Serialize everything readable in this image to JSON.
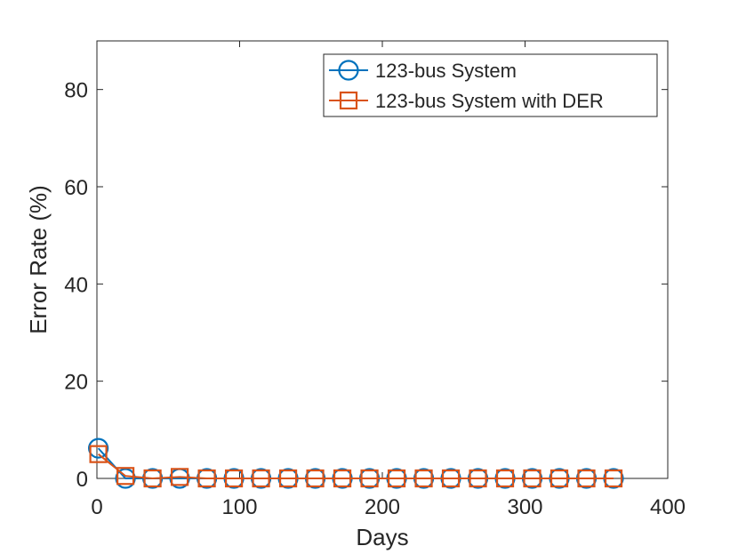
{
  "chart_data": {
    "type": "line",
    "xlabel": "Days",
    "ylabel": "Error Rate (%)",
    "x": [
      1,
      20,
      39,
      58,
      77,
      96,
      115,
      134,
      153,
      172,
      191,
      210,
      229,
      248,
      267,
      286,
      305,
      324,
      343,
      362
    ],
    "series": [
      {
        "name": "123-bus System",
        "color": "#0072BD",
        "marker": "circle",
        "values": [
          6.2,
          0,
          0,
          0,
          0,
          0,
          0,
          0,
          0,
          0,
          0,
          0,
          0,
          0,
          0,
          0,
          0,
          0,
          0,
          0
        ]
      },
      {
        "name": "123-bus System with DER",
        "color": "#D95319",
        "marker": "square",
        "values": [
          5,
          0.5,
          0,
          0.3,
          0,
          0,
          0,
          0,
          0,
          0,
          0,
          0,
          0,
          0,
          0,
          0,
          0,
          0,
          0,
          0
        ]
      }
    ],
    "xlim": [
      0,
      400
    ],
    "xticks": [
      0,
      100,
      200,
      300,
      400
    ],
    "ylim": [
      0,
      90
    ],
    "yticks": [
      0,
      20,
      40,
      60,
      80
    ],
    "legend": "northeast",
    "grid": false
  }
}
